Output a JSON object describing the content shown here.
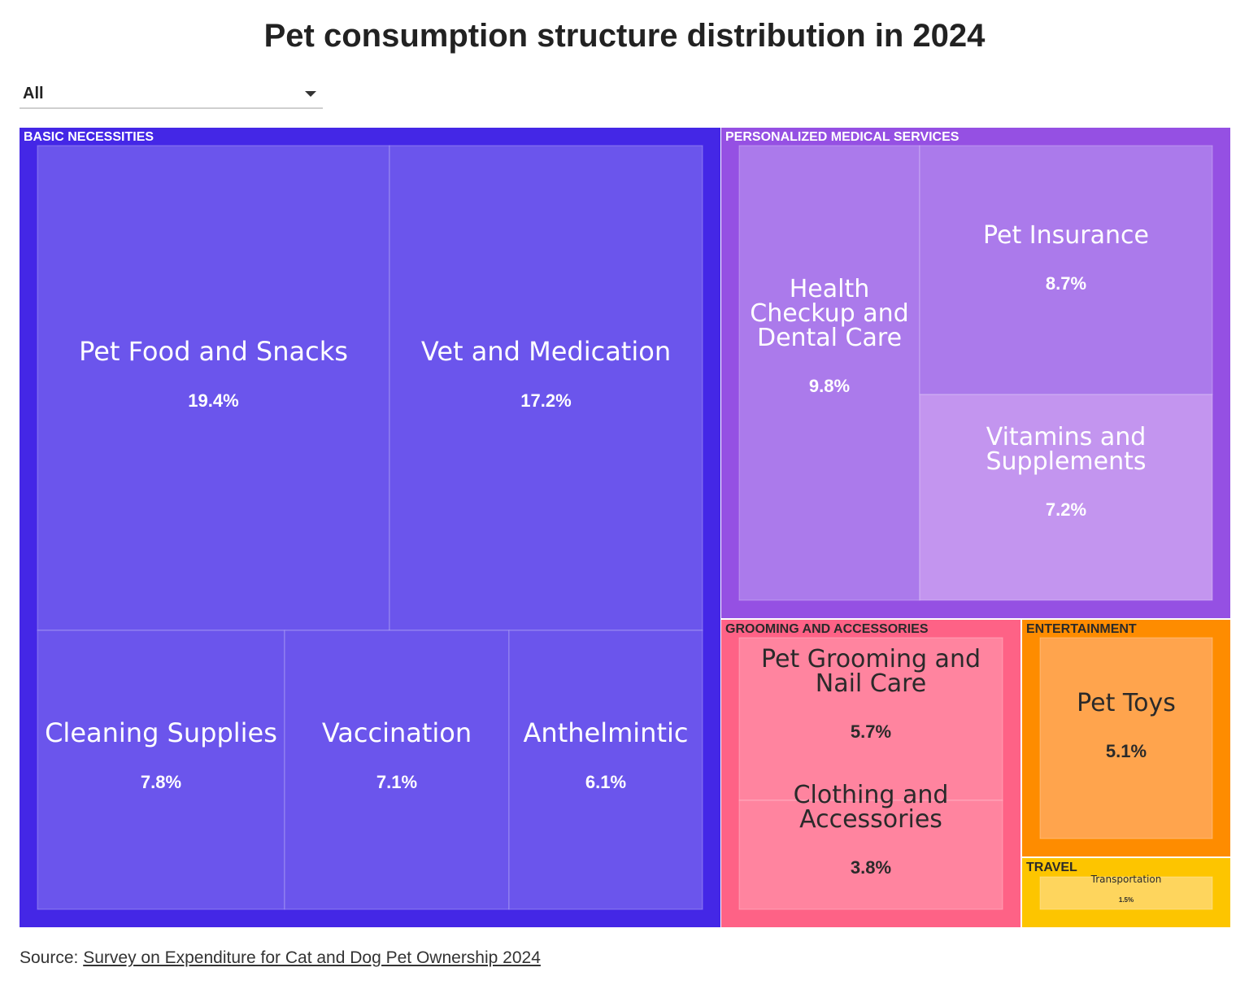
{
  "title": "Pet consumption structure distribution in 2024",
  "filter": {
    "selected": "All"
  },
  "source": {
    "prefix": "Source: ",
    "link_text": "Survey on Expenditure for Cat and Dog Pet Ownership 2024"
  },
  "chart_data": {
    "type": "treemap",
    "title": "Pet consumption structure distribution in 2024",
    "unit": "%",
    "groups": [
      {
        "name": "BASIC NECESSITIES",
        "color": "#4427E6",
        "leaf_color": "#6B55EC",
        "label_color": "#ffffff",
        "text_color": "#ffffff",
        "items": [
          {
            "name": "Pet Food and Snacks",
            "value": 19.4,
            "label": "19.4%"
          },
          {
            "name": "Vet and Medication",
            "value": 17.2,
            "label": "17.2%"
          },
          {
            "name": "Cleaning Supplies",
            "value": 7.8,
            "label": "7.8%"
          },
          {
            "name": "Vaccination",
            "value": 7.1,
            "label": "7.1%"
          },
          {
            "name": "Anthelmintic",
            "value": 6.1,
            "label": "6.1%"
          }
        ]
      },
      {
        "name": "PERSONALIZED MEDICAL SERVICES",
        "color": "#9550E3",
        "leaf_color": "#AB7AEB",
        "label_color": "#ffffff",
        "text_color": "#ffffff",
        "items": [
          {
            "name": "Health Checkup and Dental Care",
            "value": 9.8,
            "label": "9.8%"
          },
          {
            "name": "Pet Insurance",
            "value": 8.7,
            "label": "8.7%"
          },
          {
            "name": "Vitamins and Supplements",
            "value": 7.2,
            "label": "7.2%",
            "color": "#C395EF"
          }
        ]
      },
      {
        "name": "GROOMING AND ACCESSORIES",
        "color": "#FE6286",
        "leaf_color": "#FF849F",
        "label_color": "#2a2a2a",
        "text_color": "#2a2a2a",
        "items": [
          {
            "name": "Pet Grooming and Nail Care",
            "value": 5.7,
            "label": "5.7%"
          },
          {
            "name": "Clothing and Accessories",
            "value": 3.8,
            "label": "3.8%"
          }
        ]
      },
      {
        "name": "ENTERTAINMENT",
        "color": "#FE8C00",
        "leaf_color": "#FFA44D",
        "label_color": "#2a2a2a",
        "text_color": "#2a2a2a",
        "items": [
          {
            "name": "Pet Toys",
            "value": 5.1,
            "label": "5.1%"
          }
        ]
      },
      {
        "name": "TRAVEL",
        "color": "#FDC500",
        "leaf_color": "#FED55D",
        "label_color": "#2a2a2a",
        "text_color": "#2a2a2a",
        "items": [
          {
            "name": "Transportation",
            "value": 1.5,
            "label": "1.5%"
          }
        ]
      }
    ]
  }
}
